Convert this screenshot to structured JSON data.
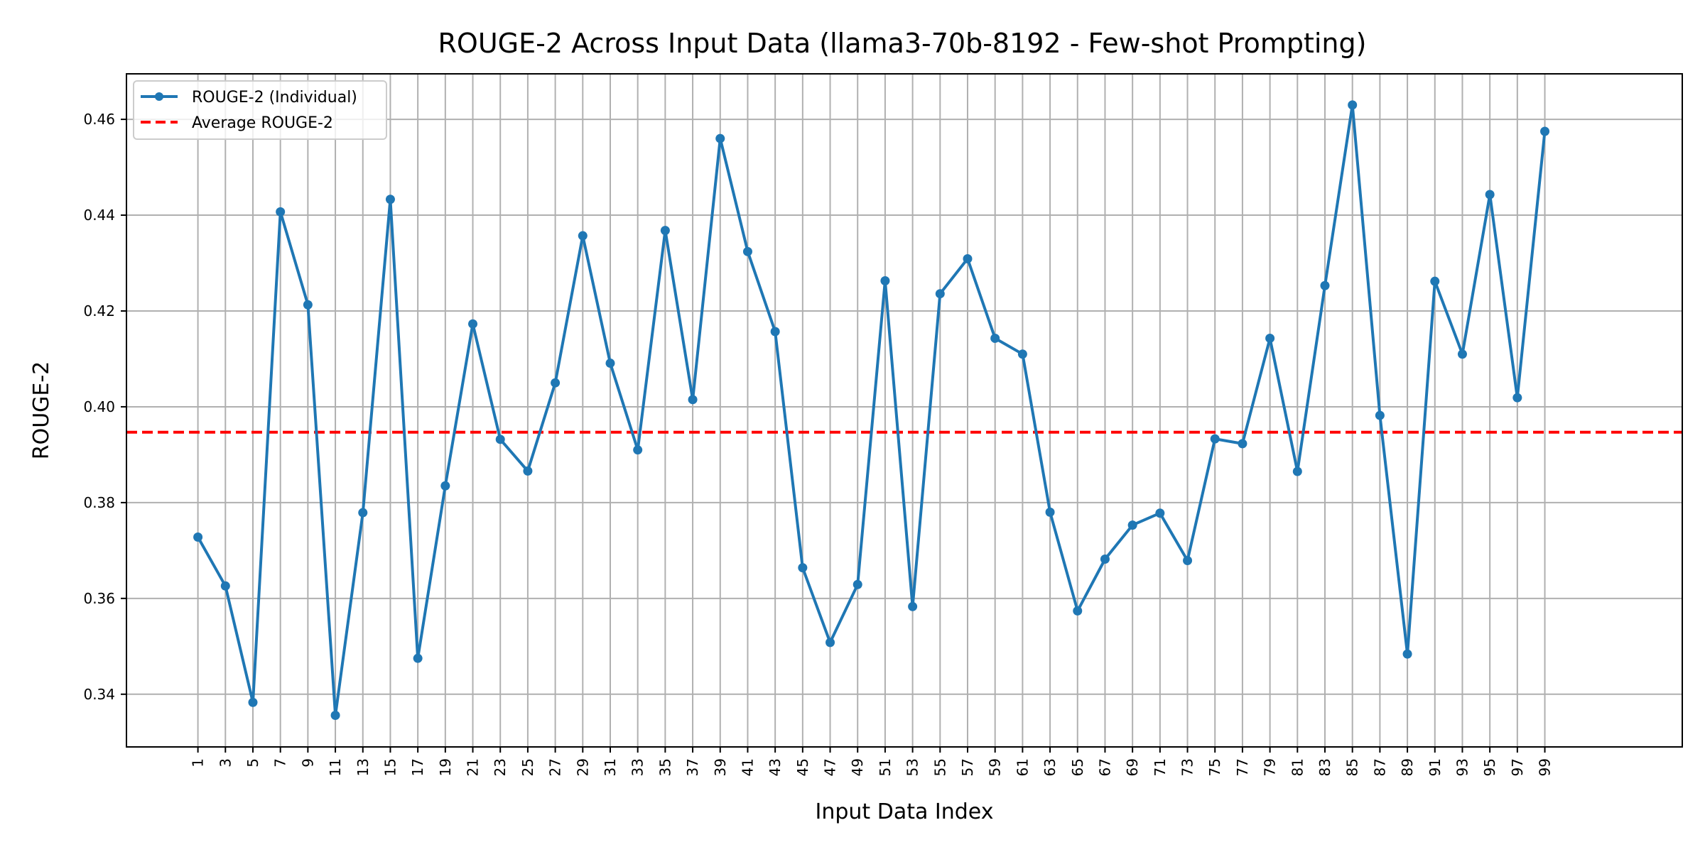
{
  "chart_data": {
    "type": "line",
    "title": "ROUGE-2 Across Input Data (llama3-70b-8192 - Few-shot Prompting)",
    "xlabel": "Input Data Index",
    "ylabel": "ROUGE-2",
    "x": [
      1,
      3,
      5,
      7,
      9,
      11,
      13,
      15,
      17,
      19,
      21,
      23,
      25,
      27,
      29,
      31,
      33,
      35,
      37,
      39,
      41,
      43,
      45,
      47,
      49,
      51,
      53,
      55,
      57,
      59,
      61,
      63,
      65,
      67,
      69,
      71,
      73,
      75,
      77,
      79,
      81,
      83,
      85,
      87,
      89,
      91,
      93,
      95,
      97,
      99
    ],
    "xticks": [
      "1",
      "3",
      "5",
      "7",
      "9",
      "11",
      "13",
      "15",
      "17",
      "19",
      "21",
      "23",
      "25",
      "27",
      "29",
      "31",
      "33",
      "35",
      "37",
      "39",
      "41",
      "43",
      "45",
      "47",
      "49",
      "51",
      "53",
      "55",
      "57",
      "59",
      "61",
      "63",
      "65",
      "67",
      "69",
      "71",
      "73",
      "75",
      "77",
      "79",
      "81",
      "83",
      "85",
      "87",
      "89",
      "91",
      "93",
      "95",
      "97",
      "99"
    ],
    "xlim": [
      -4.2,
      109
    ],
    "ylim": [
      0.329,
      0.4695
    ],
    "yticks": [
      0.34,
      0.36,
      0.38,
      0.4,
      0.42,
      0.44,
      0.46
    ],
    "ytick_labels": [
      "0.34",
      "0.36",
      "0.38",
      "0.40",
      "0.42",
      "0.44",
      "0.46"
    ],
    "grid": true,
    "legend_position": "top-left",
    "series": [
      {
        "name": "ROUGE-2 (Individual)",
        "color": "#1f77b4",
        "style": "solid-with-markers",
        "values": [
          0.3728,
          0.3626,
          0.3383,
          0.4407,
          0.4213,
          0.3356,
          0.3779,
          0.4433,
          0.3475,
          0.3835,
          0.4173,
          0.3932,
          0.3866,
          0.405,
          0.4357,
          0.4091,
          0.391,
          0.4368,
          0.4015,
          0.456,
          0.4324,
          0.4157,
          0.3664,
          0.3508,
          0.3629,
          0.4263,
          0.3583,
          0.4236,
          0.4309,
          0.4143,
          0.411,
          0.378,
          0.3574,
          0.3682,
          0.3753,
          0.3778,
          0.3679,
          0.3933,
          0.3923,
          0.4143,
          0.3865,
          0.4253,
          0.463,
          0.3982,
          0.3484,
          0.4262,
          0.411,
          0.4443,
          0.4019,
          0.4575
        ]
      },
      {
        "name": "Average ROUGE-2",
        "color": "#ff0000",
        "style": "dashed",
        "value": 0.3947
      }
    ]
  }
}
